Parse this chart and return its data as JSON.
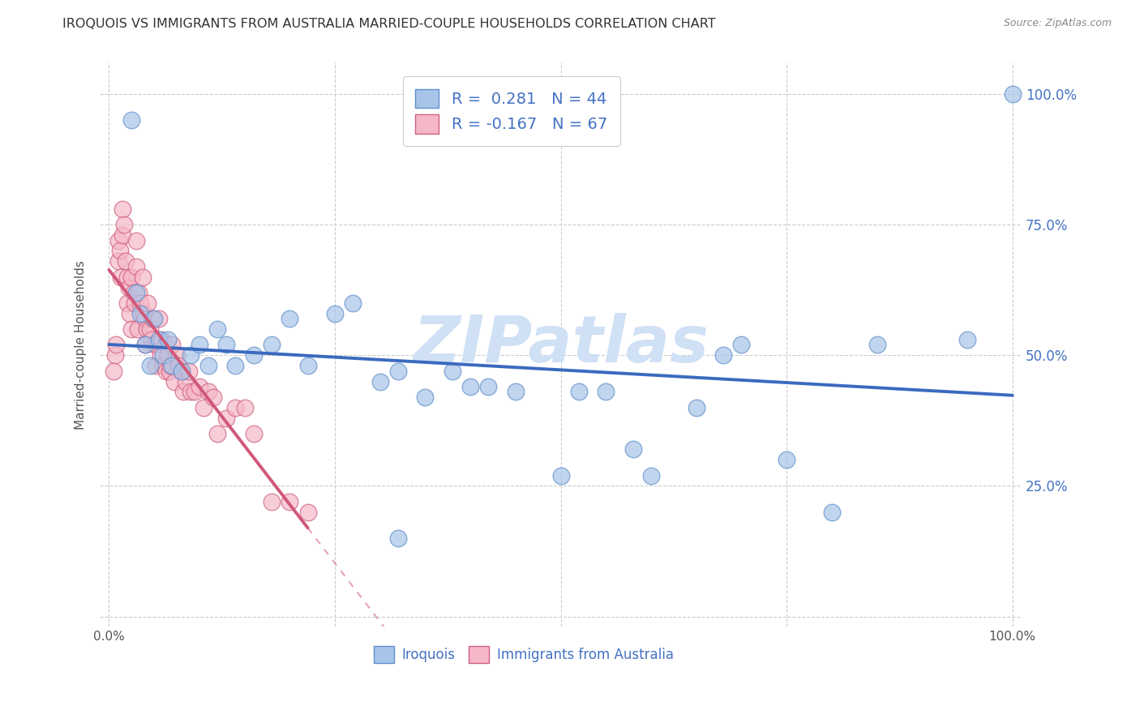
{
  "title": "IROQUOIS VS IMMIGRANTS FROM AUSTRALIA MARRIED-COUPLE HOUSEHOLDS CORRELATION CHART",
  "source": "Source: ZipAtlas.com",
  "ylabel": "Married-couple Households",
  "legend_label1": "Iroquois",
  "legend_label2": "Immigrants from Australia",
  "R1": 0.281,
  "N1": 44,
  "R2": -0.167,
  "N2": 67,
  "blue_scatter_color": "#a8c4e8",
  "pink_scatter_color": "#f5b8c8",
  "blue_edge_color": "#6090cc",
  "pink_edge_color": "#d06080",
  "blue_line_color": "#3a6abf",
  "pink_line_color": "#d05878",
  "watermark_color": "#d0e0f5",
  "iroquois_x": [
    0.025,
    0.03,
    0.035,
    0.04,
    0.045,
    0.05,
    0.055,
    0.06,
    0.065,
    0.07,
    0.08,
    0.09,
    0.1,
    0.11,
    0.12,
    0.13,
    0.14,
    0.16,
    0.18,
    0.2,
    0.22,
    0.25,
    0.27,
    0.3,
    0.32,
    0.35,
    0.38,
    0.4,
    0.42,
    0.45,
    0.5,
    0.52,
    0.55,
    0.58,
    0.6,
    0.65,
    0.68,
    0.7,
    0.75,
    0.8,
    0.85,
    0.32,
    0.95,
    1.0
  ],
  "iroquois_y": [
    0.95,
    0.62,
    0.58,
    0.52,
    0.48,
    0.57,
    0.53,
    0.5,
    0.53,
    0.48,
    0.47,
    0.5,
    0.52,
    0.48,
    0.55,
    0.52,
    0.48,
    0.5,
    0.52,
    0.57,
    0.48,
    0.58,
    0.6,
    0.45,
    0.47,
    0.42,
    0.47,
    0.44,
    0.44,
    0.43,
    0.27,
    0.43,
    0.43,
    0.32,
    0.27,
    0.4,
    0.5,
    0.52,
    0.3,
    0.2,
    0.52,
    0.15,
    0.53,
    1.0
  ],
  "australia_x": [
    0.005,
    0.007,
    0.008,
    0.01,
    0.01,
    0.012,
    0.013,
    0.015,
    0.015,
    0.017,
    0.018,
    0.02,
    0.02,
    0.022,
    0.023,
    0.025,
    0.025,
    0.027,
    0.028,
    0.03,
    0.03,
    0.032,
    0.033,
    0.035,
    0.037,
    0.038,
    0.04,
    0.04,
    0.042,
    0.043,
    0.045,
    0.047,
    0.048,
    0.05,
    0.052,
    0.053,
    0.055,
    0.057,
    0.058,
    0.06,
    0.062,
    0.063,
    0.065,
    0.067,
    0.068,
    0.07,
    0.072,
    0.075,
    0.077,
    0.08,
    0.082,
    0.085,
    0.088,
    0.09,
    0.095,
    0.1,
    0.105,
    0.11,
    0.115,
    0.12,
    0.13,
    0.14,
    0.15,
    0.16,
    0.18,
    0.2,
    0.22
  ],
  "australia_y": [
    0.47,
    0.5,
    0.52,
    0.68,
    0.72,
    0.7,
    0.65,
    0.73,
    0.78,
    0.75,
    0.68,
    0.65,
    0.6,
    0.63,
    0.58,
    0.65,
    0.55,
    0.62,
    0.6,
    0.67,
    0.72,
    0.55,
    0.62,
    0.6,
    0.65,
    0.58,
    0.52,
    0.57,
    0.55,
    0.6,
    0.55,
    0.53,
    0.57,
    0.52,
    0.48,
    0.52,
    0.57,
    0.5,
    0.53,
    0.48,
    0.52,
    0.47,
    0.5,
    0.47,
    0.48,
    0.52,
    0.45,
    0.5,
    0.48,
    0.47,
    0.43,
    0.45,
    0.47,
    0.43,
    0.43,
    0.44,
    0.4,
    0.43,
    0.42,
    0.35,
    0.38,
    0.4,
    0.4,
    0.35,
    0.22,
    0.22,
    0.2
  ],
  "xlim": [
    0.0,
    1.0
  ],
  "ylim": [
    0.0,
    1.0
  ],
  "xticks": [
    0.0,
    0.25,
    0.5,
    0.75,
    1.0
  ],
  "yticks": [
    0.0,
    0.25,
    0.5,
    0.75,
    1.0
  ],
  "xticklabels": [
    "0.0%",
    "",
    "",
    "",
    "100.0%"
  ],
  "yticklabels_right": [
    "",
    "25.0%",
    "50.0%",
    "75.0%",
    "100.0%"
  ]
}
